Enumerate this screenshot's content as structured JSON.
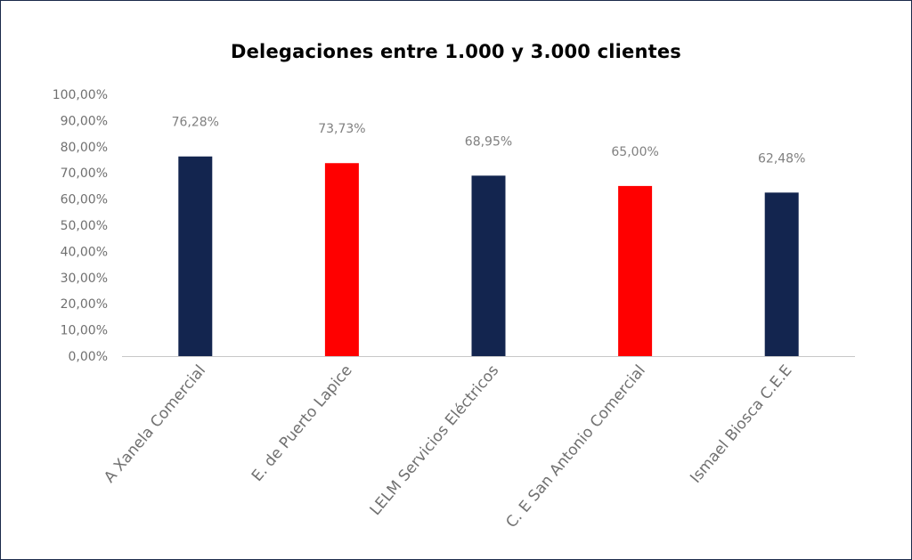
{
  "chart_data": {
    "type": "bar",
    "title": "Delegaciones entre 1.000 y 3.000 clientes",
    "xlabel": "",
    "ylabel": "",
    "categories": [
      "A Xanela Comercial",
      "E. de Puerto Lapice",
      "LELM Servicios Eléctricos",
      "C. E San Antonio Comercial",
      "Ismael Biosca C.E.E"
    ],
    "values": [
      76.28,
      73.73,
      68.95,
      65.0,
      62.48
    ],
    "data_labels": [
      "76,28%",
      "73,73%",
      "68,95%",
      "65,00%",
      "62,48%"
    ],
    "bar_colors": [
      "#13254f",
      "#ff0000",
      "#13254f",
      "#ff0000",
      "#13254f"
    ],
    "ylim": [
      0,
      100
    ],
    "yticks": [
      0,
      10,
      20,
      30,
      40,
      50,
      60,
      70,
      80,
      90,
      100
    ],
    "ytick_labels": [
      "0,00%",
      "10,00%",
      "20,00%",
      "30,00%",
      "40,00%",
      "50,00%",
      "60,00%",
      "70,00%",
      "80,00%",
      "90,00%",
      "100,00%"
    ],
    "grid": false,
    "legend": "none"
  }
}
